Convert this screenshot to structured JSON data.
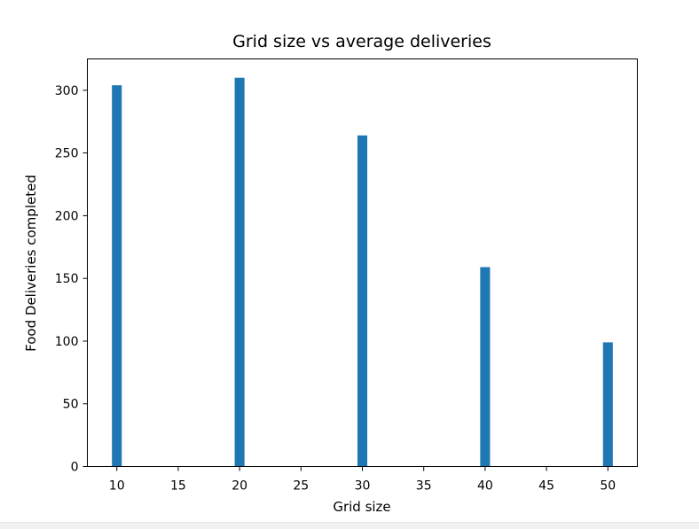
{
  "chart_data": {
    "type": "bar",
    "title": "Grid size vs average deliveries",
    "xlabel": "Grid size",
    "ylabel": "Food Deliveries completed",
    "x": [
      10,
      20,
      30,
      40,
      50
    ],
    "values": [
      304,
      310,
      264,
      159,
      99
    ],
    "bar_width": 0.8,
    "xlim": [
      7.6,
      52.4
    ],
    "ylim": [
      0,
      325
    ],
    "xticks": [
      10,
      15,
      20,
      25,
      30,
      35,
      40,
      45,
      50
    ],
    "yticks": [
      0,
      50,
      100,
      150,
      200,
      250,
      300
    ],
    "bar_color": "#1f77b4",
    "grid": false,
    "legend": "none"
  }
}
